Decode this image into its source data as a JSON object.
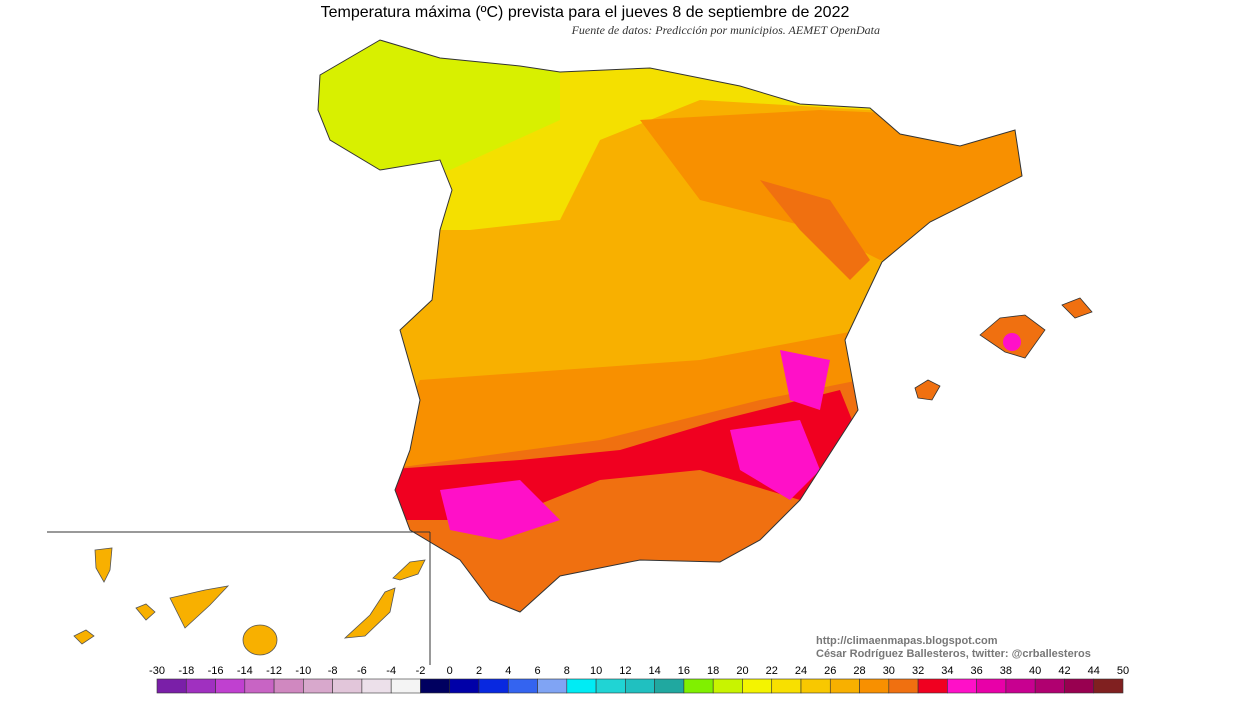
{
  "title": "Temperatura máxima (ºC) prevista para el jueves 8 de septiembre de 2022",
  "subtitle": "Fuente de datos: Predicción por municipios. AEMET OpenData",
  "credits": [
    "http://climaenmapas.blogspot.com",
    "César Rodríguez Ballesteros, twitter: @crballesteros"
  ],
  "colorbar": {
    "ticks": [
      -30,
      -18,
      -16,
      -14,
      -12,
      -10,
      -8,
      -6,
      -4,
      -2,
      0,
      2,
      4,
      6,
      8,
      10,
      12,
      14,
      16,
      18,
      20,
      22,
      24,
      26,
      28,
      30,
      32,
      34,
      36,
      38,
      40,
      42,
      44,
      50
    ],
    "colors": [
      "#7a1fa8",
      "#a030c0",
      "#c040d0",
      "#c864c4",
      "#d088c0",
      "#d8a8cc",
      "#e2c6da",
      "#ece0ea",
      "#f4f4f4",
      "#000060",
      "#0000a8",
      "#0828e0",
      "#3464f0",
      "#80a4f4",
      "#00ecf4",
      "#20d4d4",
      "#20c0c0",
      "#20a8a0",
      "#80f000",
      "#c8f400",
      "#f4f400",
      "#f8e000",
      "#f8c800",
      "#f8b000",
      "#f89000",
      "#f07010",
      "#f00020",
      "#ff10c8",
      "#e800a8",
      "#c80090",
      "#b00070",
      "#980050",
      "#802020"
    ]
  }
}
